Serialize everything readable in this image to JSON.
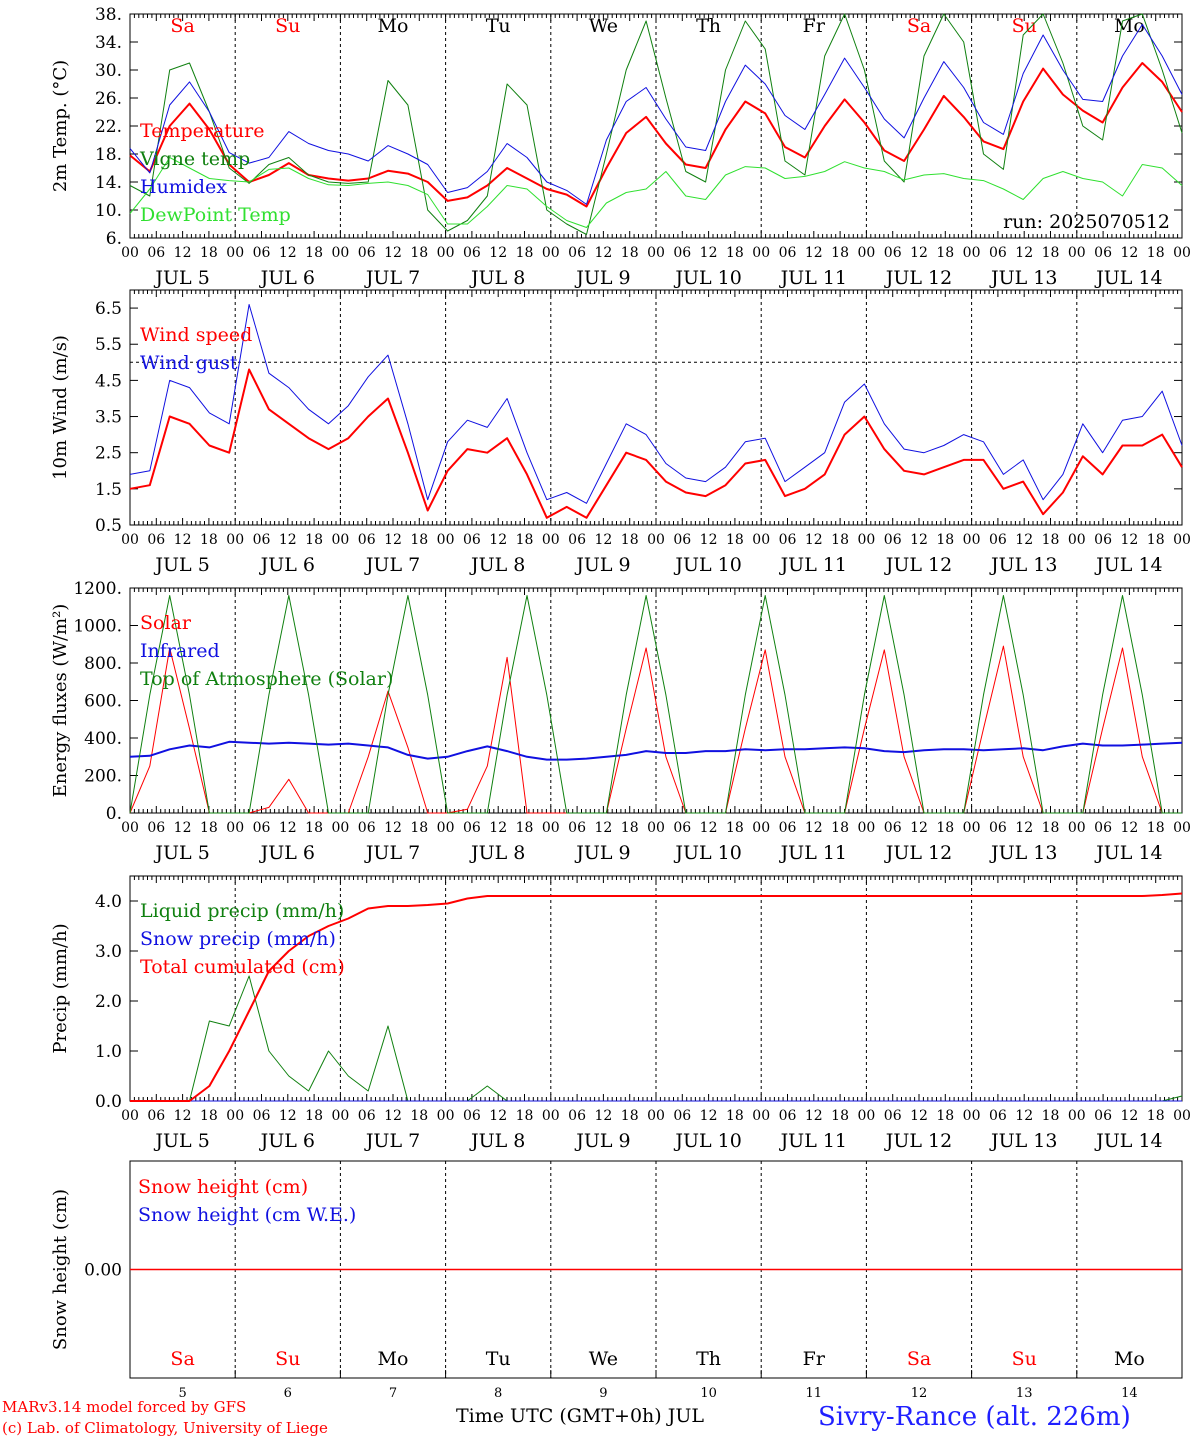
{
  "footer": {
    "credit_line1": "MARv3.14 model forced by GFS",
    "credit_line2": "(c) Lab. of Climatology, University of Liege",
    "x_axis_title": "Time UTC (GMT+0h) JUL",
    "station": "Sivry-Rance (alt. 226m)"
  },
  "colors": {
    "red": "#ff0000",
    "blue": "#1010e0",
    "dark_green": "#108010",
    "light_green": "#30e030",
    "weekend": "#ff0000",
    "weekday": "#000000"
  },
  "chart_data": [
    {
      "type": "line",
      "ylabel": "2m Temp. (°C)",
      "yticks": [
        "6.",
        "10.",
        "14.",
        "18.",
        "22.",
        "26.",
        "30.",
        "34.",
        "38."
      ],
      "ylim": [
        6,
        38
      ],
      "annotation": "run: 2025070512",
      "day_names": [
        "Sa",
        "Su",
        "Mo",
        "Tu",
        "We",
        "Th",
        "Fr",
        "Sa",
        "Su",
        "Mo"
      ],
      "weekend": [
        true,
        true,
        false,
        false,
        false,
        false,
        false,
        true,
        true,
        false
      ],
      "hour_ticks": [
        "00",
        "06",
        "12",
        "18"
      ],
      "day_labels": [
        "JUL  5",
        "JUL  6",
        "JUL  7",
        "JUL  8",
        "JUL  9",
        "JUL 10",
        "JUL 11",
        "JUL 12",
        "JUL 13",
        "JUL 14"
      ],
      "x_hours_step": 6,
      "series": [
        {
          "name": "Temperature",
          "color": "#ff0000",
          "width": 2,
          "values": [
            17.8,
            15.5,
            22,
            25.2,
            21.5,
            16.5,
            14,
            15,
            16.7,
            15,
            14.5,
            14.2,
            14.5,
            15.6,
            15.2,
            14,
            11.3,
            11.8,
            13.5,
            16,
            14.5,
            13,
            12.2,
            10.5,
            16,
            21,
            23.3,
            19.5,
            16.5,
            16,
            21.5,
            25.5,
            23.8,
            19,
            17.5,
            22,
            25.8,
            22.5,
            18.5,
            17,
            21.5,
            26.3,
            23.3,
            19.8,
            18.7,
            25.5,
            30.2,
            26.5,
            24.2,
            22.5,
            27.5,
            31,
            28.3,
            24
          ]
        },
        {
          "name": "Vigne temp",
          "color": "#108010",
          "width": 1,
          "values": [
            13.5,
            12,
            30,
            31,
            24,
            16,
            13.8,
            16.5,
            17.5,
            15,
            14,
            13.8,
            14,
            28.5,
            25,
            10,
            7,
            8.5,
            12,
            28,
            25,
            10,
            8,
            6.5,
            18,
            30,
            37,
            26,
            15.5,
            14,
            30,
            37,
            33,
            17,
            15,
            32,
            38,
            30,
            17,
            14,
            32,
            38,
            34,
            18,
            15.8,
            35,
            38,
            31,
            22,
            20,
            37,
            38,
            30,
            21
          ]
        },
        {
          "name": "Humidex",
          "color": "#1010e0",
          "width": 1,
          "values": [
            18.8,
            15.3,
            25,
            28.3,
            24,
            18.2,
            16.7,
            17.5,
            21.2,
            19.5,
            18.5,
            18,
            17,
            19.2,
            18,
            16.5,
            12.5,
            13.2,
            15.5,
            19.5,
            17.5,
            14,
            12.8,
            10.8,
            20,
            25.5,
            27.5,
            23,
            19,
            18.5,
            25.5,
            30.7,
            28,
            23.5,
            21.5,
            26.5,
            31.7,
            27.5,
            23,
            20.3,
            26,
            31.2,
            27.5,
            22.5,
            20.8,
            29.5,
            35,
            30,
            25.8,
            25.5,
            32,
            36.5,
            32,
            26.5
          ]
        },
        {
          "name": "DewPoint Temp",
          "color": "#30e030",
          "width": 1,
          "values": [
            9.5,
            13,
            17.5,
            16,
            14.5,
            14.2,
            14,
            15.8,
            16,
            14.5,
            13.6,
            13.5,
            13.8,
            14,
            13.5,
            12.2,
            8,
            8,
            10.5,
            13.5,
            13,
            10.5,
            8.5,
            7.5,
            11,
            12.5,
            13,
            15.5,
            12,
            11.5,
            15,
            16.2,
            16,
            14.5,
            14.8,
            15.5,
            16.9,
            16,
            15.5,
            14.3,
            15,
            15.2,
            14.5,
            14.2,
            13,
            11.5,
            14.5,
            15.5,
            14.5,
            14,
            12,
            16.5,
            16,
            13.5
          ]
        }
      ]
    },
    {
      "type": "line",
      "ylabel": "10m Wind (m/s)",
      "yticks": [
        "0.5",
        "1.5",
        "2.5",
        "3.5",
        "4.5",
        "5.5",
        "6.5"
      ],
      "ylim": [
        0.5,
        7
      ],
      "reference_line": 5,
      "hour_ticks": [
        "00",
        "06",
        "12",
        "18"
      ],
      "day_labels": [
        "JUL  5",
        "JUL  6",
        "JUL  7",
        "JUL  8",
        "JUL  9",
        "JUL 10",
        "JUL 11",
        "JUL 12",
        "JUL 13",
        "JUL 14"
      ],
      "x_hours_step": 6,
      "series": [
        {
          "name": "Wind speed",
          "color": "#ff0000",
          "width": 2,
          "values": [
            1.5,
            1.6,
            3.5,
            3.3,
            2.7,
            2.5,
            4.8,
            3.7,
            3.3,
            2.9,
            2.6,
            2.9,
            3.5,
            4,
            2.5,
            0.9,
            2,
            2.6,
            2.5,
            2.9,
            1.9,
            0.7,
            1,
            0.7,
            1.6,
            2.5,
            2.3,
            1.7,
            1.4,
            1.3,
            1.6,
            2.2,
            2.3,
            1.3,
            1.5,
            1.9,
            3,
            3.5,
            2.6,
            2,
            1.9,
            2.1,
            2.3,
            2.3,
            1.5,
            1.7,
            0.8,
            1.4,
            2.4,
            1.9,
            2.7,
            2.7,
            3,
            2.1
          ]
        },
        {
          "name": "Wind gust",
          "color": "#1010e0",
          "width": 1,
          "values": [
            1.9,
            2,
            4.5,
            4.3,
            3.6,
            3.3,
            6.6,
            4.7,
            4.3,
            3.7,
            3.3,
            3.8,
            4.6,
            5.2,
            3.3,
            1.2,
            2.8,
            3.4,
            3.2,
            4,
            2.5,
            1.2,
            1.4,
            1.1,
            2.2,
            3.3,
            3,
            2.2,
            1.8,
            1.7,
            2.1,
            2.8,
            2.9,
            1.7,
            2.1,
            2.5,
            3.9,
            4.4,
            3.3,
            2.6,
            2.5,
            2.7,
            3,
            2.8,
            1.9,
            2.3,
            1.2,
            1.9,
            3.3,
            2.5,
            3.4,
            3.5,
            4.2,
            2.7
          ]
        }
      ]
    },
    {
      "type": "line",
      "ylabel": "Energy fluxes (W/m²)",
      "yticks": [
        "0.",
        "200.",
        "400.",
        "600.",
        "800.",
        "1000.",
        "1200."
      ],
      "ylim": [
        0,
        1200
      ],
      "hour_ticks": [
        "00",
        "06",
        "12",
        "18"
      ],
      "day_labels": [
        "JUL  5",
        "JUL  6",
        "JUL  7",
        "JUL  8",
        "JUL  9",
        "JUL 10",
        "JUL 11",
        "JUL 12",
        "JUL 13",
        "JUL 14"
      ],
      "x_hours_step": 6,
      "series": [
        {
          "name": "Solar",
          "color": "#ff0000",
          "width": 1,
          "values": [
            0,
            250,
            880,
            450,
            0,
            0,
            0,
            30,
            180,
            0,
            0,
            0,
            300,
            650,
            350,
            0,
            0,
            20,
            250,
            830,
            0,
            0,
            0,
            0,
            0,
            450,
            880,
            300,
            0,
            0,
            0,
            450,
            870,
            300,
            0,
            0,
            0,
            450,
            870,
            300,
            0,
            0,
            0,
            450,
            890,
            300,
            0,
            0,
            0,
            450,
            880,
            300,
            0,
            0
          ]
        },
        {
          "name": "Infrared",
          "color": "#1010e0",
          "width": 2,
          "values": [
            300,
            305,
            340,
            360,
            350,
            380,
            375,
            370,
            375,
            370,
            365,
            370,
            360,
            350,
            310,
            290,
            300,
            330,
            355,
            330,
            300,
            285,
            285,
            290,
            300,
            310,
            330,
            320,
            320,
            330,
            330,
            340,
            335,
            340,
            340,
            345,
            350,
            345,
            330,
            325,
            335,
            340,
            340,
            335,
            340,
            345,
            335,
            355,
            370,
            360,
            360,
            365,
            370,
            375
          ]
        },
        {
          "name": "Top of Atmosphere (Solar)",
          "color": "#108010",
          "width": 1,
          "values": [
            0,
            630,
            1160,
            630,
            0,
            0,
            0,
            630,
            1160,
            630,
            0,
            0,
            0,
            630,
            1160,
            630,
            0,
            0,
            0,
            630,
            1160,
            630,
            0,
            0,
            0,
            630,
            1160,
            630,
            0,
            0,
            0,
            630,
            1160,
            630,
            0,
            0,
            0,
            630,
            1160,
            630,
            0,
            0,
            0,
            630,
            1160,
            630,
            0,
            0,
            0,
            630,
            1160,
            630,
            0,
            0
          ]
        }
      ]
    },
    {
      "type": "line",
      "ylabel": "Precip (mm/h)",
      "yticks": [
        "0.0",
        "1.0",
        "2.0",
        "3.0",
        "4.0"
      ],
      "ylim": [
        0,
        4.5
      ],
      "hour_ticks": [
        "00",
        "06",
        "12",
        "18"
      ],
      "day_labels": [
        "JUL  5",
        "JUL  6",
        "JUL  7",
        "JUL  8",
        "JUL  9",
        "JUL 10",
        "JUL 11",
        "JUL 12",
        "JUL 13",
        "JUL 14"
      ],
      "x_hours_step": 6,
      "series": [
        {
          "name": "Liquid precip (mm/h)",
          "color": "#108010",
          "width": 1,
          "values": [
            0,
            0,
            0,
            0,
            1.6,
            1.5,
            2.5,
            1,
            0.5,
            0.2,
            1,
            0.5,
            0.2,
            1.5,
            0,
            0,
            0,
            0,
            0.3,
            0,
            0,
            0,
            0,
            0,
            0,
            0,
            0,
            0,
            0,
            0,
            0,
            0,
            0,
            0,
            0,
            0,
            0,
            0,
            0,
            0,
            0,
            0,
            0,
            0,
            0,
            0,
            0,
            0,
            0,
            0,
            0,
            0,
            0,
            0.1
          ]
        },
        {
          "name": "Snow precip (mm/h)",
          "color": "#1010e0",
          "width": 1,
          "values": [
            0,
            0,
            0,
            0,
            0,
            0,
            0,
            0,
            0,
            0,
            0,
            0,
            0,
            0,
            0,
            0,
            0,
            0,
            0,
            0,
            0,
            0,
            0,
            0,
            0,
            0,
            0,
            0,
            0,
            0,
            0,
            0,
            0,
            0,
            0,
            0,
            0,
            0,
            0,
            0,
            0,
            0,
            0,
            0,
            0,
            0,
            0,
            0,
            0,
            0,
            0,
            0,
            0,
            0
          ]
        },
        {
          "name": "Total cumulated (cm)",
          "color": "#ff0000",
          "width": 2,
          "values": [
            0,
            0,
            0,
            0,
            0.3,
            1,
            1.8,
            2.6,
            3,
            3.3,
            3.5,
            3.65,
            3.85,
            3.9,
            3.9,
            3.92,
            3.95,
            4.05,
            4.1,
            4.1,
            4.1,
            4.1,
            4.1,
            4.1,
            4.1,
            4.1,
            4.1,
            4.1,
            4.1,
            4.1,
            4.1,
            4.1,
            4.1,
            4.1,
            4.1,
            4.1,
            4.1,
            4.1,
            4.1,
            4.1,
            4.1,
            4.1,
            4.1,
            4.1,
            4.1,
            4.1,
            4.1,
            4.1,
            4.1,
            4.1,
            4.1,
            4.1,
            4.12,
            4.15
          ]
        }
      ]
    },
    {
      "type": "line",
      "ylabel": "Snow height (cm)",
      "yticks": [
        "0.00"
      ],
      "ylim": [
        -1,
        1
      ],
      "day_names": [
        "Sa",
        "Su",
        "Mo",
        "Tu",
        "We",
        "Th",
        "Fr",
        "Sa",
        "Su",
        "Mo"
      ],
      "weekend": [
        true,
        true,
        false,
        false,
        false,
        false,
        false,
        true,
        true,
        false
      ],
      "day_numbers": [
        "5",
        "6",
        "7",
        "8",
        "9",
        "10",
        "11",
        "12",
        "13",
        "14"
      ],
      "x_hours_step": 6,
      "series": [
        {
          "name": "Snow height (cm)",
          "color": "#ff0000",
          "width": 1.5,
          "values": [
            0,
            0,
            0,
            0,
            0,
            0,
            0,
            0,
            0,
            0,
            0,
            0,
            0,
            0,
            0,
            0,
            0,
            0,
            0,
            0,
            0,
            0,
            0,
            0,
            0,
            0,
            0,
            0,
            0,
            0,
            0,
            0,
            0,
            0,
            0,
            0,
            0,
            0,
            0,
            0,
            0,
            0,
            0,
            0,
            0,
            0,
            0,
            0,
            0,
            0,
            0,
            0,
            0,
            0
          ]
        },
        {
          "name": "Snow height (cm W.E.)",
          "color": "#1010e0",
          "width": 1.5,
          "values": []
        }
      ]
    }
  ]
}
